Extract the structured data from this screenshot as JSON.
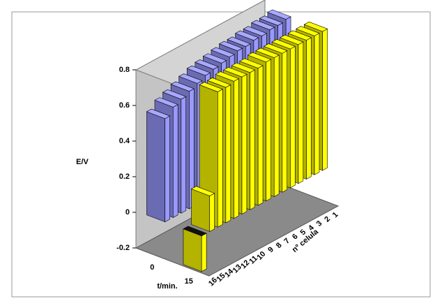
{
  "chart_data": {
    "type": "bar3d",
    "categories": [
      "16",
      "15",
      "14",
      "13",
      "12",
      "11",
      "10",
      "9",
      "8",
      "7",
      "6",
      "5",
      "4",
      "3",
      "2",
      "1"
    ],
    "series": [
      {
        "name": "0",
        "color": "#9999ff",
        "values": [
          0.58,
          0.62,
          0.64,
          0.66,
          0.68,
          0.7,
          0.71,
          0.72,
          0.73,
          0.74,
          0.74,
          0.75,
          0.75,
          0.76,
          0.76,
          0.77
        ]
      },
      {
        "name": "15",
        "color": "#ffff00",
        "values": [
          -0.2,
          0.2,
          0.76,
          0.76,
          0.77,
          0.77,
          0.77,
          0.77,
          0.78,
          0.78,
          0.78,
          0.78,
          0.78,
          0.78,
          0.78,
          0.78
        ]
      }
    ],
    "ylim": [
      -0.2,
      0.8
    ],
    "yticks": [
      -0.2,
      0,
      0.2,
      0.4,
      0.6,
      0.8
    ],
    "ylabel": "E/V",
    "series_axis_label": "t/min.",
    "xlabel": "nº celula"
  }
}
